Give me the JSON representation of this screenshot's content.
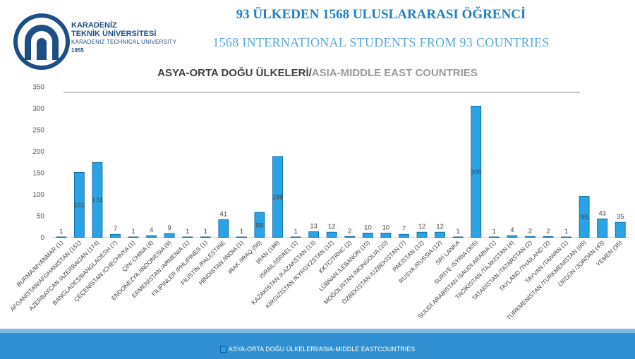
{
  "header": {
    "title_tr": "93 ÜLKEDEN 1568 ULUSLARARASI ÖĞRENCİ",
    "title_en": "1568 INTERNATIONAL STUDENTS FROM 93 COUNTRIES"
  },
  "logo": {
    "line1": "KARADENİZ",
    "line2": "TEKNİK ÜNİVERSİTESİ",
    "line3": "KARADENIZ TECHNICAL UNIVERSITY",
    "line4": "1955"
  },
  "colors": {
    "bar": "#29a3e6",
    "bar_border": "#0c5f99",
    "title": "#1f7fc1",
    "footer": "#2f8fd0"
  },
  "chart_data": {
    "type": "bar",
    "title_part1": "ASYA-ORTA DOĞU ÜLKELERİ/",
    "title_part2": "ASIA-MIDDLE EAST COUNTRIES",
    "ylim": [
      0,
      350
    ],
    "yticks": [
      0,
      50,
      100,
      150,
      200,
      250,
      300,
      350
    ],
    "categories": [
      "BURMA/MYANMAR (1)",
      "AFGANİSTAN/AFGHANISTAN (151)",
      "AZERBAYCAN /AZERBAIJAN (174)",
      "BANGLADEŞ/BANGLADESH (7)",
      "ÇEÇENİSTAN /CHECHNYA (1)",
      "ÇİN/ CHINA (4)",
      "ENDONEZYA /INDONESIA (9)",
      "ERMENİSTAN /ARMENIA (1)",
      "FİLİPİNLER /PHLIPINES (1)",
      "FİLİSTİN /PALESTINE",
      "HİNDİSTAN /INDIA (1)",
      "IRAK /IRAQ (58)",
      "İRAN (188)",
      "İSRAİL/ISRAEL (1)",
      "KAZAKİSTAN /KAZAKSTAN (13)",
      "KIRGIZİSTAN /KYRGYZSTAN (12)",
      "KKTC/TRNC (2)",
      "LÜBNAN /LEBANON (10)",
      "MOĞOLİSTAN /MONGOLIA (10)",
      "ÖZBEKİSTAN /UZBEKİSTAN (7)",
      "PAKİSTAN (12)",
      "RUSYA /RUSSIA (12)",
      "SRİ LANKA",
      "SURİYE /SYRIA (305)",
      "SUUDİ ARABİSTAN /SAUDI ARABIA (1)",
      "TACİKİSTAN /TAJIKISTAN (4)",
      "TATARİSTAN /TATARSTAN (2)",
      "TAYLAND /THAILAND (2)",
      "TAYVAN /TAIWAN (1)",
      "TÜRKMENİSTAN /TURKMENISTAN (95)",
      "ÜRDÜN /JORDAN (43)",
      "YEMEN (35)"
    ],
    "values": [
      1,
      151,
      174,
      7,
      1,
      4,
      9,
      1,
      1,
      41,
      1,
      58,
      188,
      1,
      13,
      12,
      2,
      10,
      10,
      7,
      12,
      12,
      1,
      305,
      1,
      4,
      2,
      2,
      1,
      95,
      43,
      35
    ],
    "legend": "ASYA-ORTA DOĞU ÜLKELERİ/ASIA-MIDDLE EASTCOUNTRIES",
    "legend_position": "bottom",
    "grid": false
  }
}
